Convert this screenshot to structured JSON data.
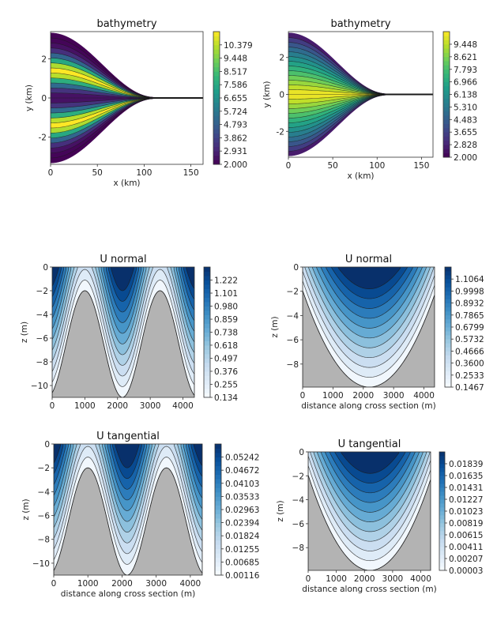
{
  "chart_data": [
    {
      "type": "heatmap",
      "title": "bathymetry",
      "xlabel": "x (km)",
      "ylabel": "y (km)",
      "xlim": [
        0,
        163
      ],
      "ylim": [
        -3.4,
        3.4
      ],
      "xticks": [
        "0",
        "50",
        "100",
        "150"
      ],
      "yticks": [
        "-2",
        "0",
        "2"
      ],
      "colormap": "viridis",
      "colorbar_ticks": [
        "2.000",
        "2.931",
        "3.862",
        "4.793",
        "5.724",
        "6.655",
        "7.586",
        "8.517",
        "9.448",
        "10.379"
      ],
      "colorbar_range": [
        2.0,
        11.31
      ]
    },
    {
      "type": "heatmap",
      "title": "bathymetry",
      "xlabel": "x (km)",
      "ylabel": "y (km)",
      "xlim": [
        0,
        163
      ],
      "ylim": [
        -3.4,
        3.4
      ],
      "xticks": [
        "0",
        "50",
        "100",
        "150"
      ],
      "yticks": [
        "-2",
        "0",
        "2"
      ],
      "colormap": "viridis",
      "colorbar_ticks": [
        "2.000",
        "2.828",
        "3.655",
        "4.483",
        "5.310",
        "6.138",
        "6.966",
        "7.793",
        "8.621",
        "9.448"
      ],
      "colorbar_range": [
        2.0,
        10.28
      ]
    },
    {
      "type": "heatmap",
      "title": "U normal",
      "xlabel": "",
      "ylabel": "z (m)",
      "xlim": [
        0,
        4350
      ],
      "ylim": [
        -11,
        0
      ],
      "xticks": [
        "0",
        "1000",
        "2000",
        "3000",
        "4000"
      ],
      "yticks": [
        "−10",
        "−8",
        "−6",
        "−4",
        "−2",
        "0"
      ],
      "colormap": "Blues",
      "colorbar_ticks": [
        "0.134",
        "0.255",
        "0.376",
        "0.497",
        "0.618",
        "0.738",
        "0.859",
        "0.980",
        "1.101",
        "1.222"
      ],
      "colorbar_range": [
        0.134,
        1.343
      ]
    },
    {
      "type": "heatmap",
      "title": "U normal",
      "xlabel": "distance along cross section (m)",
      "ylabel": "z (m)",
      "xlim": [
        0,
        4350
      ],
      "ylim": [
        -9.9,
        0
      ],
      "xticks": [
        "0",
        "1000",
        "2000",
        "3000",
        "4000"
      ],
      "yticks": [
        "−8",
        "−6",
        "−4",
        "−2",
        "0"
      ],
      "colormap": "Blues",
      "colorbar_ticks": [
        "0.1467",
        "0.2533",
        "0.3600",
        "0.4666",
        "0.5732",
        "0.6799",
        "0.7865",
        "0.8932",
        "0.9998",
        "1.1064"
      ],
      "colorbar_range": [
        0.1467,
        1.213
      ]
    },
    {
      "type": "heatmap",
      "title": "U tangential",
      "xlabel": "distance along cross section (m)",
      "ylabel": "z (m)",
      "xlim": [
        0,
        4350
      ],
      "ylim": [
        -11,
        0
      ],
      "xticks": [
        "0",
        "1000",
        "2000",
        "3000",
        "4000"
      ],
      "yticks": [
        "−10",
        "−8",
        "−6",
        "−4",
        "−2",
        "0"
      ],
      "colormap": "Blues",
      "colorbar_ticks": [
        "0.00116",
        "0.00685",
        "0.01255",
        "0.01824",
        "0.02394",
        "0.02963",
        "0.03533",
        "0.04103",
        "0.04672",
        "0.05242"
      ],
      "colorbar_range": [
        0.00116,
        0.0581
      ]
    },
    {
      "type": "heatmap",
      "title": "U tangential",
      "xlabel": "distance along cross section (m)",
      "ylabel": "z (m)",
      "xlim": [
        0,
        4350
      ],
      "ylim": [
        -9.9,
        0
      ],
      "xticks": [
        "0",
        "1000",
        "2000",
        "3000",
        "4000"
      ],
      "yticks": [
        "−8",
        "−6",
        "−4",
        "−2",
        "0"
      ],
      "colormap": "Blues",
      "colorbar_ticks": [
        "0.00003",
        "0.00207",
        "0.00411",
        "0.00615",
        "0.00819",
        "0.01023",
        "0.01227",
        "0.01431",
        "0.01635",
        "0.01839"
      ],
      "colorbar_range": [
        3e-05,
        0.02043
      ]
    }
  ]
}
